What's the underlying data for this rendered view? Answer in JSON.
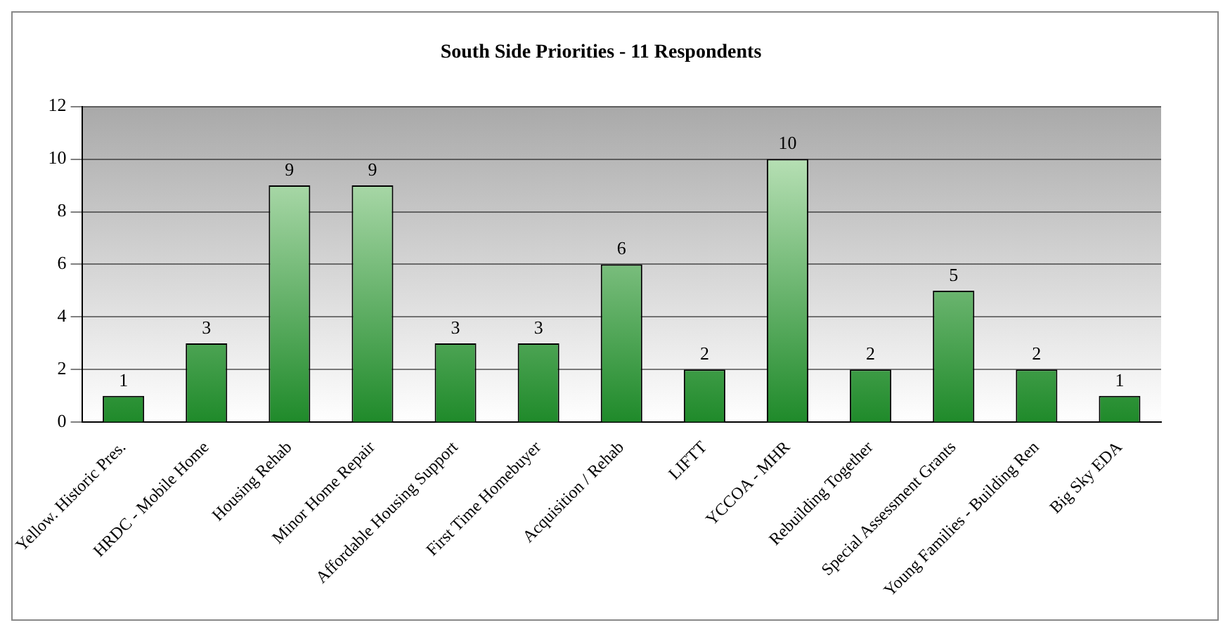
{
  "chart_data": {
    "type": "bar",
    "title": "South Side Priorities - 11 Respondents",
    "categories": [
      "Yellow. Historic Pres.",
      "HRDC - Mobile Home",
      "Housing Rehab",
      "Minor Home Repair",
      "Affordable Housing Support",
      "First Time Homebuyer",
      "Acquisition / Rehab",
      "LIFTT",
      "YCCOA - MHR",
      "Rebuilding Together",
      "Special Assessment Grants",
      "Young Families - Building Ren",
      "Big Sky EDA"
    ],
    "values": [
      1,
      3,
      9,
      9,
      3,
      3,
      6,
      2,
      10,
      2,
      5,
      2,
      1
    ],
    "color": "#1f8a2a",
    "ylim": [
      0,
      12
    ],
    "yticks": [
      0,
      2,
      4,
      6,
      8,
      10,
      12
    ],
    "grid": "y",
    "data_labels": true,
    "legend": false
  }
}
